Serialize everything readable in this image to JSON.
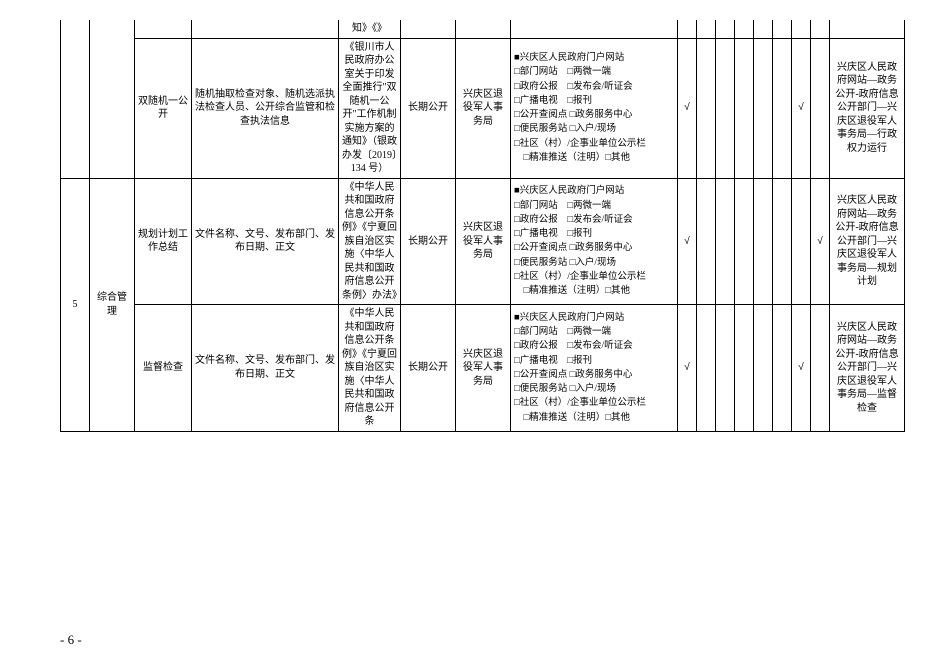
{
  "page_number": "- 6 -",
  "index": "5",
  "category": "综合管理",
  "tick": "√",
  "rows": [
    {
      "sub": "",
      "desc": "",
      "basis": "知》《》",
      "time": "",
      "org": "",
      "chan_lines": [],
      "ticks": [
        "",
        "",
        "",
        "",
        "",
        "",
        "",
        ""
      ],
      "path": ""
    },
    {
      "sub": "双随机一公开",
      "desc": "随机抽取检查对象、随机选派执法检查人员、公开综合监管和检查执法信息",
      "basis": "《银川市人民政府办公室关于印发全面推行\"双随机一公开\"工作机制实施方案的通知》（银政办发〔2019〕134 号）",
      "time": "长期公开",
      "org": "兴庆区退役军人事务局",
      "chan_lines": [
        "■兴庆区人民政府门户网站",
        "□部门网站　□两微一端",
        "□政府公报　□发布会/听证会",
        "□广播电视　□报刊",
        "□公开查阅点 □政务服务中心",
        "□便民服务站 □入户/现场",
        "□社区（村）/企事业单位公示栏",
        "　□精准推送（注明）□其他"
      ],
      "ticks": [
        "√",
        "",
        "",
        "",
        "",
        "",
        "√",
        ""
      ],
      "path": "兴庆区人民政府网站—政务公开-政府信息公开部门—兴庆区退役军人事务局—行政权力运行"
    },
    {
      "sub": "规划计划工作总结",
      "desc": "文件名称、文号、发布部门、发布日期、正文",
      "basis": "《中华人民共和国政府信息公开条例》《宁夏回族自治区实施〈中华人民共和国政府信息公开条例〉办法》",
      "time": "长期公开",
      "org": "兴庆区退役军人事务局",
      "chan_lines": [
        "■兴庆区人民政府门户网站",
        "□部门网站　□两微一端",
        "□政府公报　□发布会/听证会",
        "□广播电视　□报刊",
        "□公开查阅点 □政务服务中心",
        "□便民服务站 □入户/现场",
        "□社区（村）/企事业单位公示栏",
        "　□精准推送（注明）□其他"
      ],
      "ticks": [
        "√",
        "",
        "",
        "",
        "",
        "",
        "",
        "√"
      ],
      "path": "兴庆区人民政府网站—政务公开-政府信息公开部门—兴庆区退役军人事务局—规划计划"
    },
    {
      "sub": "监督检查",
      "desc": "文件名称、文号、发布部门、发布日期、正文",
      "basis": "《中华人民共和国政府信息公开条例》《宁夏回族自治区实施〈中华人民共和国政府信息公开条",
      "time": "长期公开",
      "org": "兴庆区退役军人事务局",
      "chan_lines": [
        "■兴庆区人民政府门户网站",
        "□部门网站　□两微一端",
        "□政府公报　□发布会/听证会",
        "□广播电视　□报刊",
        "□公开查阅点 □政务服务中心",
        "□便民服务站 □入户/现场",
        "□社区（村）/企事业单位公示栏",
        "　□精准推送（注明）□其他"
      ],
      "ticks": [
        "√",
        "",
        "",
        "",
        "",
        "",
        "√",
        ""
      ],
      "path": "兴庆区人民政府网站—政务公开-政府信息公开部门—兴庆区退役军人事务局—监督检查"
    }
  ]
}
